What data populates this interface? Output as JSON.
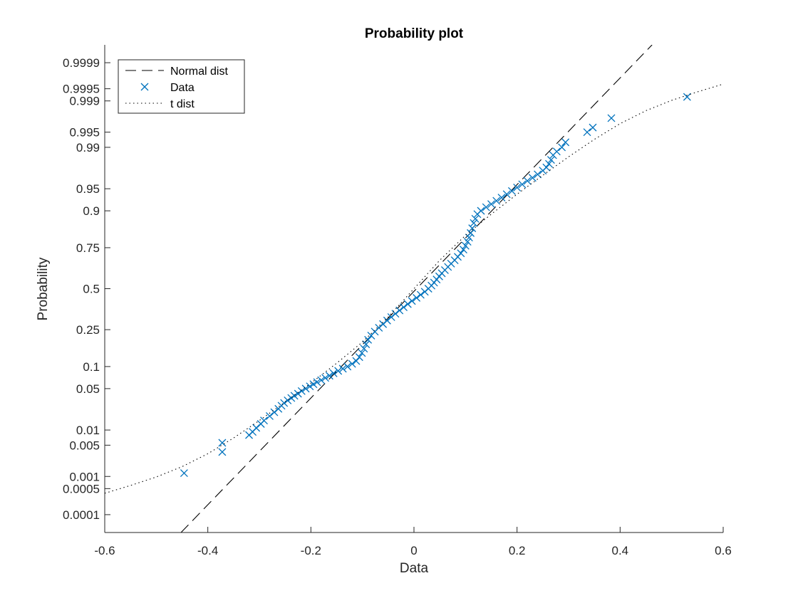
{
  "chart_data": {
    "type": "scatter",
    "title": "Probability plot",
    "xlabel": "Data",
    "ylabel": "Probability",
    "xlim": [
      -0.6,
      0.6
    ],
    "y_scale": "normal-probability",
    "ylim": [
      3e-05,
      0.99997
    ],
    "x_ticks": [
      -0.6,
      -0.4,
      -0.2,
      0,
      0.2,
      0.4,
      0.6
    ],
    "x_tick_labels": [
      "-0.6",
      "-0.4",
      "-0.2",
      "0",
      "0.2",
      "0.4",
      "0.6"
    ],
    "y_ticks": [
      0.0001,
      0.0005,
      0.001,
      0.005,
      0.01,
      0.05,
      0.1,
      0.25,
      0.5,
      0.75,
      0.9,
      0.95,
      0.99,
      0.995,
      0.999,
      0.9995,
      0.9999
    ],
    "y_tick_labels": [
      "0.0001",
      "0.0005",
      "0.001",
      "0.005",
      "0.01",
      "0.05",
      "0.1",
      "0.25",
      "0.5",
      "0.75",
      "0.9",
      "0.95",
      "0.99",
      "0.995",
      "0.999",
      "0.9995",
      "0.9999"
    ],
    "grid": false,
    "legend_position": "top-left",
    "colors": {
      "data": "#0072BD",
      "normal": "#000000",
      "t": "#000000",
      "axis": "#262626"
    },
    "legend": [
      {
        "label": "Normal dist",
        "style": "dashed"
      },
      {
        "label": "Data",
        "style": "marker-x"
      },
      {
        "label": "t dist",
        "style": "dotted"
      }
    ],
    "series": [
      {
        "name": "Normal dist",
        "style": "dashed",
        "points": [
          [
            -0.452,
            3e-05
          ],
          [
            0.462,
            0.99997
          ]
        ]
      },
      {
        "name": "Data",
        "style": "marker-x",
        "points": [
          [
            -0.446,
            0.0012
          ],
          [
            -0.372,
            0.0036
          ],
          [
            -0.372,
            0.0056
          ],
          [
            -0.32,
            0.008
          ],
          [
            -0.313,
            0.0092
          ],
          [
            -0.306,
            0.011
          ],
          [
            -0.297,
            0.013
          ],
          [
            -0.291,
            0.015
          ],
          [
            -0.28,
            0.018
          ],
          [
            -0.271,
            0.021
          ],
          [
            -0.263,
            0.024
          ],
          [
            -0.257,
            0.027
          ],
          [
            -0.252,
            0.03
          ],
          [
            -0.245,
            0.033
          ],
          [
            -0.238,
            0.036
          ],
          [
            -0.232,
            0.039
          ],
          [
            -0.225,
            0.042
          ],
          [
            -0.218,
            0.046
          ],
          [
            -0.21,
            0.05
          ],
          [
            -0.202,
            0.054
          ],
          [
            -0.195,
            0.058
          ],
          [
            -0.188,
            0.062
          ],
          [
            -0.18,
            0.066
          ],
          [
            -0.172,
            0.071
          ],
          [
            -0.164,
            0.076
          ],
          [
            -0.156,
            0.082
          ],
          [
            -0.147,
            0.088
          ],
          [
            -0.138,
            0.094
          ],
          [
            -0.129,
            0.1
          ],
          [
            -0.12,
            0.108
          ],
          [
            -0.112,
            0.117
          ],
          [
            -0.106,
            0.13
          ],
          [
            -0.101,
            0.145
          ],
          [
            -0.097,
            0.162
          ],
          [
            -0.093,
            0.18
          ],
          [
            -0.089,
            0.2
          ],
          [
            -0.083,
            0.22
          ],
          [
            -0.076,
            0.24
          ],
          [
            -0.068,
            0.26
          ],
          [
            -0.06,
            0.28
          ],
          [
            -0.052,
            0.3
          ],
          [
            -0.044,
            0.32
          ],
          [
            -0.036,
            0.34
          ],
          [
            -0.028,
            0.36
          ],
          [
            -0.02,
            0.38
          ],
          [
            -0.012,
            0.4
          ],
          [
            -0.004,
            0.42
          ],
          [
            0.005,
            0.44
          ],
          [
            0.013,
            0.46
          ],
          [
            0.021,
            0.48
          ],
          [
            0.028,
            0.5
          ],
          [
            0.034,
            0.52
          ],
          [
            0.039,
            0.54
          ],
          [
            0.044,
            0.56
          ],
          [
            0.049,
            0.58
          ],
          [
            0.054,
            0.6
          ],
          [
            0.06,
            0.62
          ],
          [
            0.066,
            0.64
          ],
          [
            0.072,
            0.66
          ],
          [
            0.079,
            0.68
          ],
          [
            0.085,
            0.7
          ],
          [
            0.091,
            0.72
          ],
          [
            0.096,
            0.74
          ],
          [
            0.1,
            0.76
          ],
          [
            0.104,
            0.78
          ],
          [
            0.107,
            0.8
          ],
          [
            0.11,
            0.82
          ],
          [
            0.113,
            0.84
          ],
          [
            0.116,
            0.86
          ],
          [
            0.119,
            0.875
          ],
          [
            0.123,
            0.89
          ],
          [
            0.13,
            0.9
          ],
          [
            0.14,
            0.91
          ],
          [
            0.15,
            0.918
          ],
          [
            0.16,
            0.926
          ],
          [
            0.17,
            0.933
          ],
          [
            0.18,
            0.94
          ],
          [
            0.19,
            0.946
          ],
          [
            0.2,
            0.952
          ],
          [
            0.21,
            0.957
          ],
          [
            0.22,
            0.962
          ],
          [
            0.23,
            0.966
          ],
          [
            0.24,
            0.97
          ],
          [
            0.25,
            0.974
          ],
          [
            0.257,
            0.977
          ],
          [
            0.262,
            0.98
          ],
          [
            0.266,
            0.983
          ],
          [
            0.27,
            0.986
          ],
          [
            0.277,
            0.988
          ],
          [
            0.287,
            0.99
          ],
          [
            0.294,
            0.992
          ],
          [
            0.336,
            0.995
          ],
          [
            0.347,
            0.996
          ],
          [
            0.383,
            0.9975
          ],
          [
            0.53,
            0.9992
          ]
        ]
      },
      {
        "name": "t dist",
        "style": "dotted",
        "points": [
          [
            -0.6,
            0.00038
          ],
          [
            -0.55,
            0.0006
          ],
          [
            -0.5,
            0.00097
          ],
          [
            -0.45,
            0.0017
          ],
          [
            -0.4,
            0.0033
          ],
          [
            -0.35,
            0.007
          ],
          [
            -0.3,
            0.015
          ],
          [
            -0.25,
            0.031
          ],
          [
            -0.2,
            0.06
          ],
          [
            -0.15,
            0.11
          ],
          [
            -0.1,
            0.19
          ],
          [
            -0.05,
            0.32
          ],
          [
            0,
            0.5
          ],
          [
            0.05,
            0.68
          ],
          [
            0.1,
            0.81
          ],
          [
            0.15,
            0.89
          ],
          [
            0.2,
            0.94
          ],
          [
            0.25,
            0.969
          ],
          [
            0.3,
            0.985
          ],
          [
            0.35,
            0.993
          ],
          [
            0.4,
            0.9967
          ],
          [
            0.45,
            0.9983
          ],
          [
            0.5,
            0.99903
          ],
          [
            0.55,
            0.9994
          ],
          [
            0.6,
            0.99962
          ]
        ]
      }
    ]
  }
}
